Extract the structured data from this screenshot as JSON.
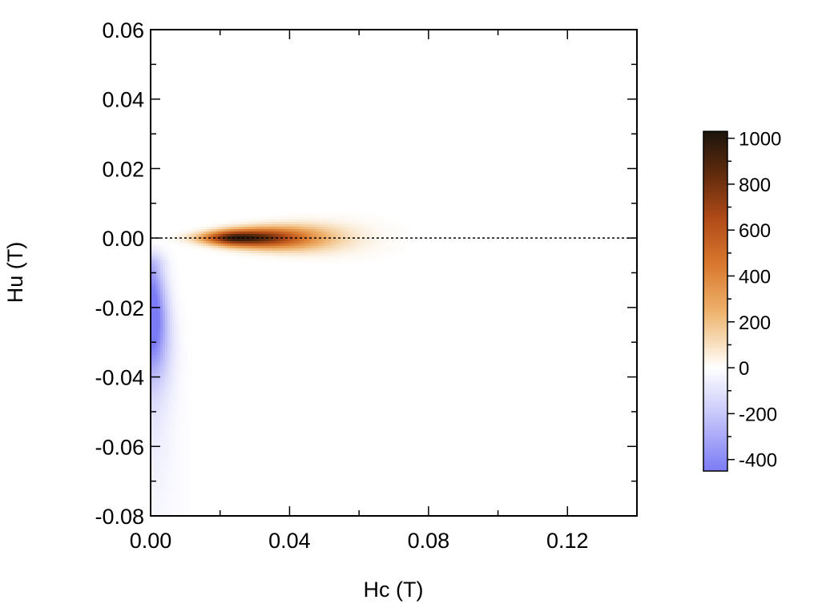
{
  "chart_data": {
    "type": "heatmap",
    "title": "",
    "xlabel": "Hc (T)",
    "ylabel": "Hu (T)",
    "xlim": [
      0.0,
      0.14
    ],
    "ylim": [
      -0.08,
      0.06
    ],
    "x_ticks": [
      "0.00",
      "0.04",
      "0.08",
      "0.12"
    ],
    "y_ticks": [
      "0.06",
      "0.04",
      "0.02",
      "0.00",
      "-0.02",
      "-0.04",
      "-0.06",
      "-0.08"
    ],
    "reference_line": {
      "axis": "y",
      "value": 0.0,
      "style": "dotted"
    },
    "colorbar": {
      "range": [
        -450,
        1030
      ],
      "ticks": [
        "1000",
        "800",
        "600",
        "400",
        "200",
        "0",
        "-200",
        "-400"
      ],
      "colormap": [
        {
          "value": -450,
          "color": "#7b7bf5"
        },
        {
          "value": -200,
          "color": "#c8c8fb"
        },
        {
          "value": 0,
          "color": "#ffffff"
        },
        {
          "value": 100,
          "color": "#f8e0c0"
        },
        {
          "value": 250,
          "color": "#eeb06a"
        },
        {
          "value": 450,
          "color": "#d9782e"
        },
        {
          "value": 650,
          "color": "#b04a18"
        },
        {
          "value": 850,
          "color": "#5e2a0c"
        },
        {
          "value": 1030,
          "color": "#1c140c"
        }
      ]
    },
    "features": [
      {
        "name": "positive-peak",
        "peak_value": 1000,
        "center": [
          0.025,
          0.0
        ],
        "hc_range": [
          0.004,
          0.09
        ],
        "hu_range": [
          -0.02,
          0.012
        ]
      },
      {
        "name": "negative-region",
        "min_value": -450,
        "center": [
          0.002,
          -0.023
        ],
        "hc_range": [
          0.0,
          0.018
        ],
        "hu_range": [
          -0.08,
          -0.003
        ]
      }
    ]
  }
}
